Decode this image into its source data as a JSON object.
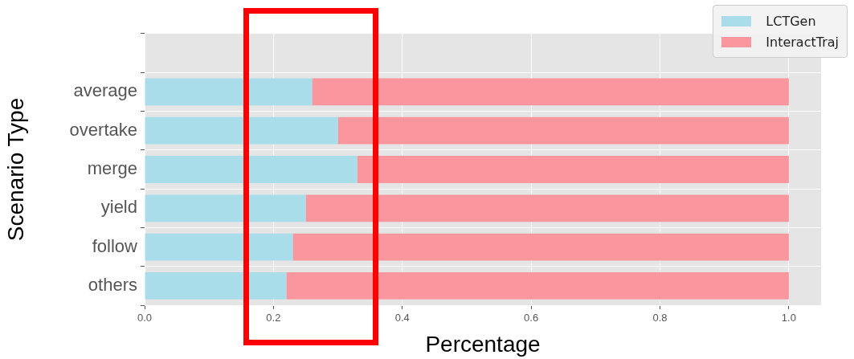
{
  "chart_data": {
    "type": "bar",
    "orientation": "horizontal",
    "stacked": true,
    "xlabel": "Percentage",
    "ylabel": "Scenario Type",
    "categories": [
      null,
      "average",
      "overtake",
      "merge",
      "yield",
      "follow",
      "others"
    ],
    "series": [
      {
        "name": "LCTGen",
        "color": "#a8dde9",
        "values": [
          null,
          0.26,
          0.3,
          0.33,
          0.25,
          0.23,
          0.22
        ]
      },
      {
        "name": "InteractTraj",
        "color": "#fa979e",
        "values": [
          null,
          0.74,
          0.7,
          0.67,
          0.75,
          0.77,
          0.78
        ]
      }
    ],
    "xlim": [
      0,
      1.05
    ],
    "xticks": [
      {
        "value": 0,
        "label": "0.0"
      },
      0.2,
      0.4,
      0.6,
      0.8,
      {
        "value": 1,
        "label": "1.0"
      }
    ],
    "grid": true,
    "legend": "top right"
  }
}
